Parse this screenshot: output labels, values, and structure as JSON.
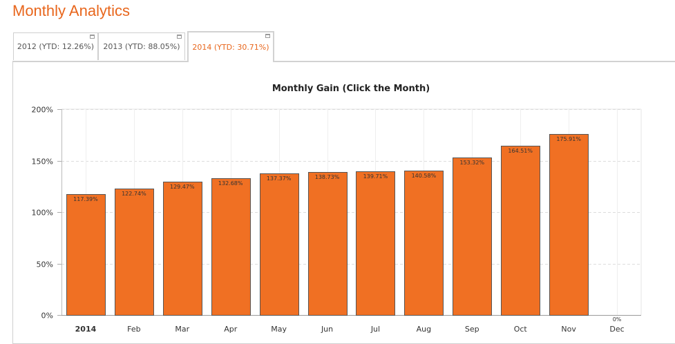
{
  "page": {
    "title": "Monthly Analytics"
  },
  "tabs": [
    {
      "label": "2012 (YTD: 12.26%)",
      "active": false
    },
    {
      "label": "2013 (YTD: 88.05%)",
      "active": false
    },
    {
      "label": "2014 (YTD: 30.71%)",
      "active": true
    }
  ],
  "colors": {
    "accent": "#e8661c",
    "bar_fill": "#f07023",
    "bar_stroke": "#555555"
  },
  "chart_data": {
    "type": "bar",
    "title": "Monthly Gain (Click the Month)",
    "xlabel": "",
    "ylabel": "",
    "categories": [
      "2014",
      "Feb",
      "Mar",
      "Apr",
      "May",
      "Jun",
      "Jul",
      "Aug",
      "Sep",
      "Oct",
      "Nov",
      "Dec"
    ],
    "values": [
      117.39,
      122.74,
      129.47,
      132.68,
      137.37,
      138.73,
      139.71,
      140.58,
      153.32,
      164.51,
      175.91,
      0
    ],
    "value_labels": [
      "117.39%",
      "122.74%",
      "129.47%",
      "132.68%",
      "137.37%",
      "138.73%",
      "139.71%",
      "140.58%",
      "153.32%",
      "164.51%",
      "175.91%",
      "0%"
    ],
    "ylim": [
      0,
      200
    ],
    "yticks": [
      0,
      50,
      100,
      150,
      200
    ],
    "ytick_labels": [
      "0%",
      "50%",
      "100%",
      "150%",
      "200%"
    ],
    "grid": true,
    "legend": "none"
  }
}
